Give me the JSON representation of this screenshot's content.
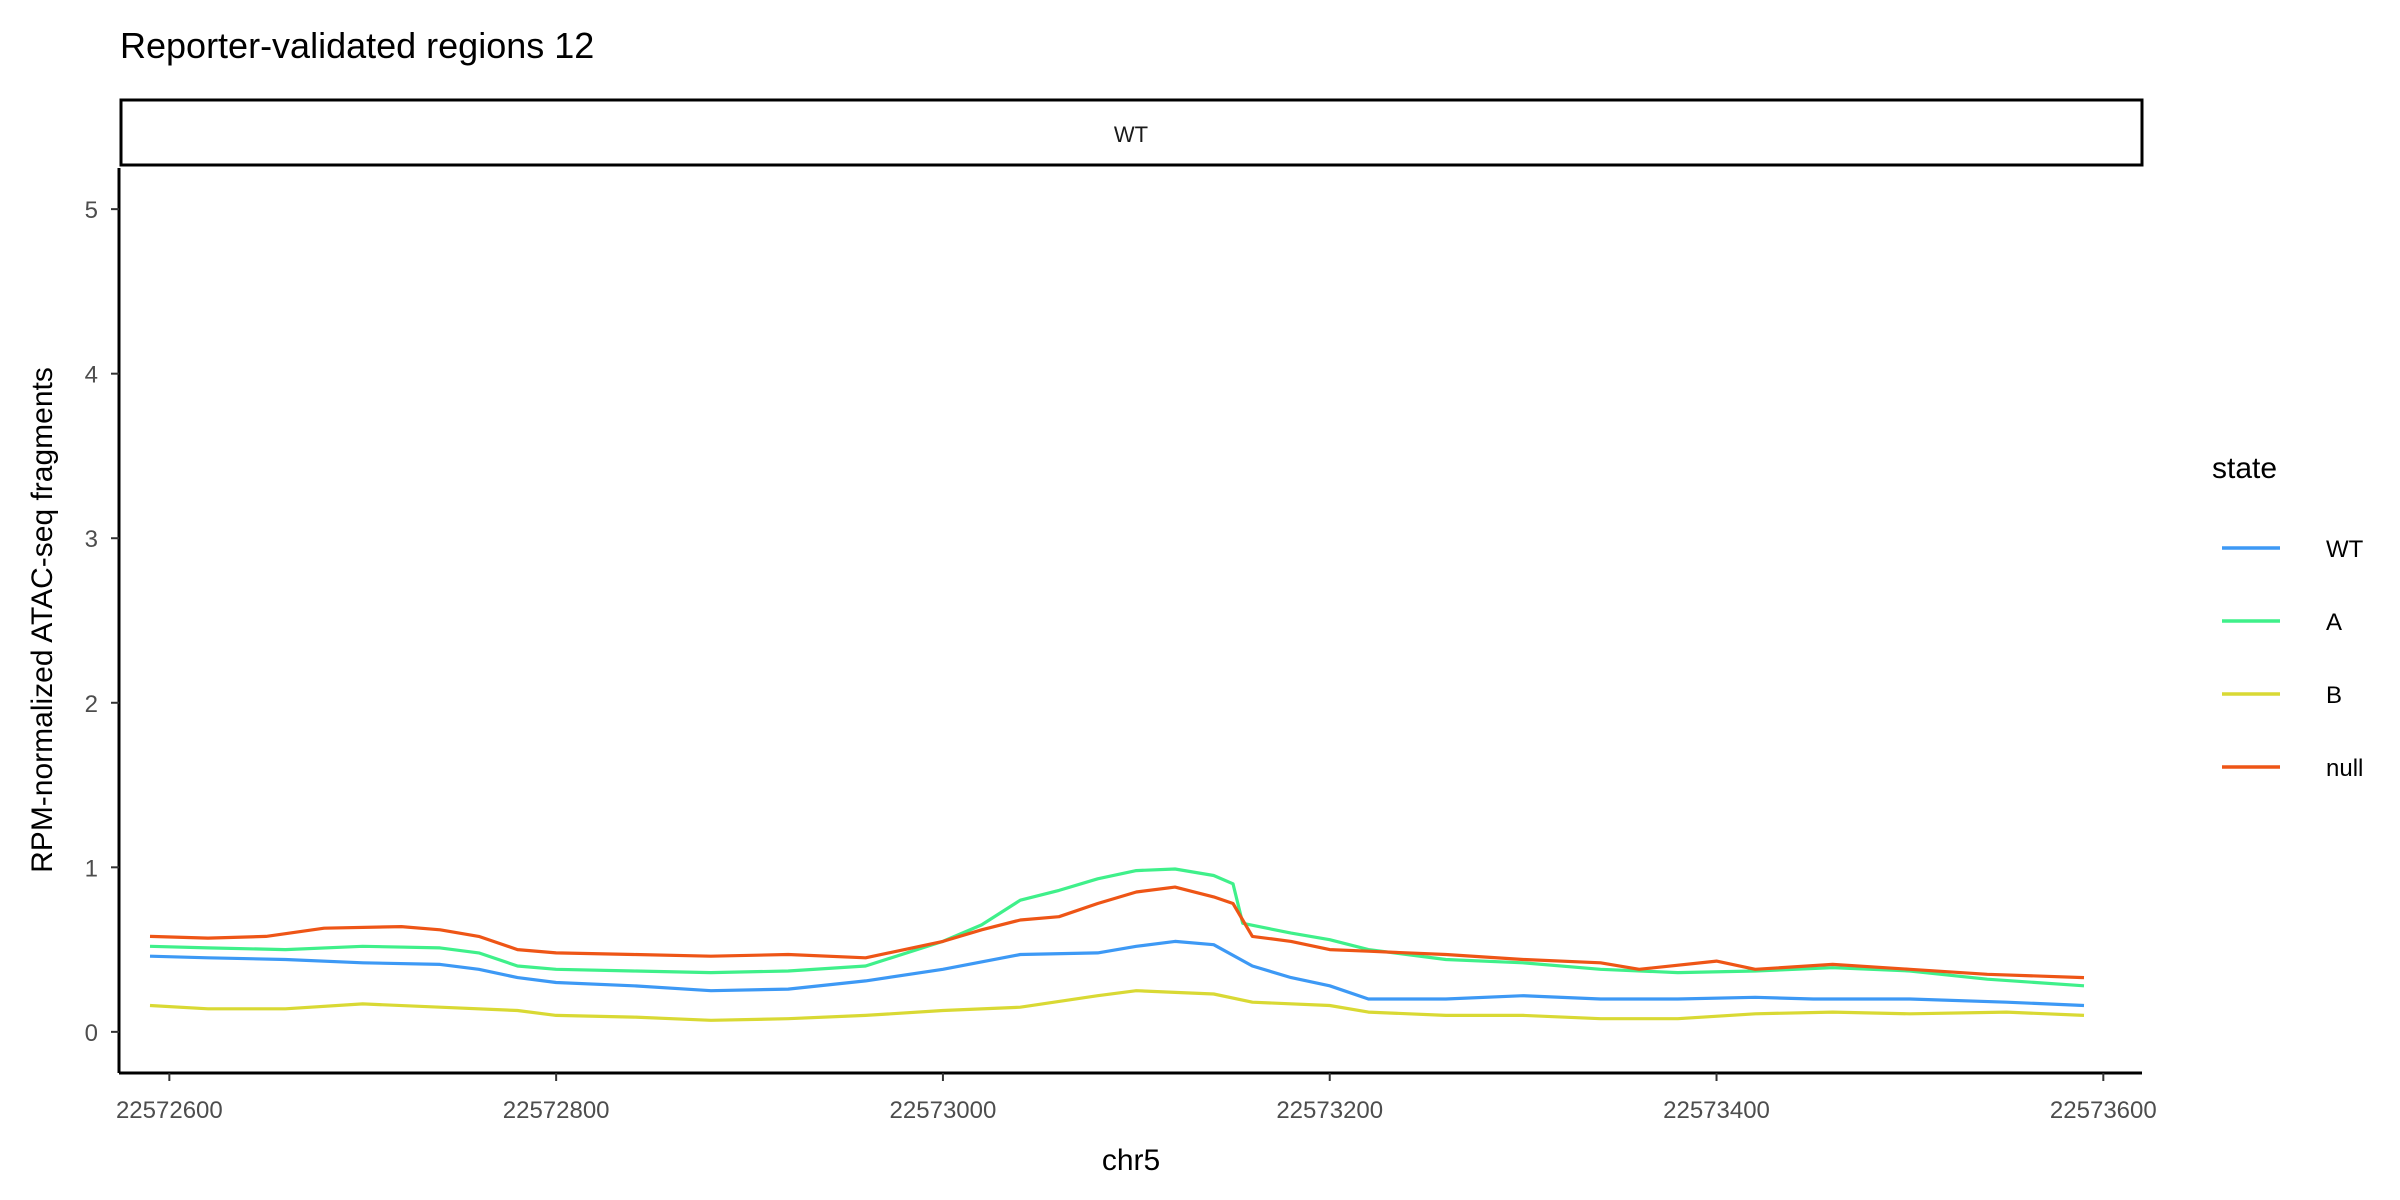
{
  "chart_data": {
    "type": "line",
    "title": "Reporter-validated regions 12",
    "facet": "WT",
    "xlabel": "chr5",
    "ylabel": "RPM-normalized ATAC-seq fragments",
    "xlim": [
      22572575,
      22573620
    ],
    "ylim": [
      -0.25,
      5.25
    ],
    "x_ticks": [
      22572600,
      22572800,
      22573000,
      22573200,
      22573400,
      22573600
    ],
    "y_ticks": [
      0,
      1,
      2,
      3,
      4,
      5
    ],
    "grid": false,
    "legend": {
      "title": "state",
      "position": "right"
    },
    "series": [
      {
        "name": "WT",
        "color": "#3d99f5",
        "points": [
          [
            22572590,
            0.46
          ],
          [
            22572620,
            0.45
          ],
          [
            22572660,
            0.44
          ],
          [
            22572700,
            0.42
          ],
          [
            22572740,
            0.41
          ],
          [
            22572760,
            0.38
          ],
          [
            22572780,
            0.33
          ],
          [
            22572800,
            0.3
          ],
          [
            22572840,
            0.28
          ],
          [
            22572880,
            0.25
          ],
          [
            22572920,
            0.26
          ],
          [
            22572960,
            0.31
          ],
          [
            22573000,
            0.38
          ],
          [
            22573040,
            0.47
          ],
          [
            22573080,
            0.48
          ],
          [
            22573100,
            0.52
          ],
          [
            22573120,
            0.55
          ],
          [
            22573140,
            0.53
          ],
          [
            22573160,
            0.4
          ],
          [
            22573180,
            0.33
          ],
          [
            22573200,
            0.28
          ],
          [
            22573220,
            0.2
          ],
          [
            22573260,
            0.2
          ],
          [
            22573300,
            0.22
          ],
          [
            22573340,
            0.2
          ],
          [
            22573380,
            0.2
          ],
          [
            22573420,
            0.21
          ],
          [
            22573450,
            0.2
          ],
          [
            22573500,
            0.2
          ],
          [
            22573550,
            0.18
          ],
          [
            22573590,
            0.16
          ]
        ]
      },
      {
        "name": "A",
        "color": "#3ff08a",
        "points": [
          [
            22572590,
            0.52
          ],
          [
            22572620,
            0.51
          ],
          [
            22572660,
            0.5
          ],
          [
            22572700,
            0.52
          ],
          [
            22572740,
            0.51
          ],
          [
            22572760,
            0.48
          ],
          [
            22572780,
            0.4
          ],
          [
            22572800,
            0.38
          ],
          [
            22572840,
            0.37
          ],
          [
            22572880,
            0.36
          ],
          [
            22572920,
            0.37
          ],
          [
            22572960,
            0.4
          ],
          [
            22573000,
            0.55
          ],
          [
            22573020,
            0.65
          ],
          [
            22573040,
            0.8
          ],
          [
            22573060,
            0.86
          ],
          [
            22573080,
            0.93
          ],
          [
            22573100,
            0.98
          ],
          [
            22573120,
            0.99
          ],
          [
            22573140,
            0.95
          ],
          [
            22573150,
            0.9
          ],
          [
            22573155,
            0.66
          ],
          [
            22573180,
            0.6
          ],
          [
            22573200,
            0.56
          ],
          [
            22573220,
            0.5
          ],
          [
            22573260,
            0.44
          ],
          [
            22573300,
            0.42
          ],
          [
            22573340,
            0.38
          ],
          [
            22573380,
            0.36
          ],
          [
            22573420,
            0.37
          ],
          [
            22573460,
            0.39
          ],
          [
            22573500,
            0.37
          ],
          [
            22573540,
            0.32
          ],
          [
            22573590,
            0.28
          ]
        ]
      },
      {
        "name": "B",
        "color": "#d9d934",
        "points": [
          [
            22572590,
            0.16
          ],
          [
            22572620,
            0.14
          ],
          [
            22572660,
            0.14
          ],
          [
            22572700,
            0.17
          ],
          [
            22572740,
            0.15
          ],
          [
            22572780,
            0.13
          ],
          [
            22572800,
            0.1
          ],
          [
            22572840,
            0.09
          ],
          [
            22572880,
            0.07
          ],
          [
            22572920,
            0.08
          ],
          [
            22572960,
            0.1
          ],
          [
            22573000,
            0.13
          ],
          [
            22573040,
            0.15
          ],
          [
            22573080,
            0.22
          ],
          [
            22573100,
            0.25
          ],
          [
            22573120,
            0.24
          ],
          [
            22573140,
            0.23
          ],
          [
            22573160,
            0.18
          ],
          [
            22573200,
            0.16
          ],
          [
            22573220,
            0.12
          ],
          [
            22573260,
            0.1
          ],
          [
            22573300,
            0.1
          ],
          [
            22573340,
            0.08
          ],
          [
            22573380,
            0.08
          ],
          [
            22573420,
            0.11
          ],
          [
            22573460,
            0.12
          ],
          [
            22573500,
            0.11
          ],
          [
            22573550,
            0.12
          ],
          [
            22573590,
            0.1
          ]
        ]
      },
      {
        "name": "null",
        "color": "#ee5516",
        "points": [
          [
            22572590,
            0.58
          ],
          [
            22572620,
            0.57
          ],
          [
            22572650,
            0.58
          ],
          [
            22572680,
            0.63
          ],
          [
            22572720,
            0.64
          ],
          [
            22572740,
            0.62
          ],
          [
            22572760,
            0.58
          ],
          [
            22572780,
            0.5
          ],
          [
            22572800,
            0.48
          ],
          [
            22572840,
            0.47
          ],
          [
            22572880,
            0.46
          ],
          [
            22572920,
            0.47
          ],
          [
            22572960,
            0.45
          ],
          [
            22573000,
            0.55
          ],
          [
            22573020,
            0.62
          ],
          [
            22573040,
            0.68
          ],
          [
            22573060,
            0.7
          ],
          [
            22573080,
            0.78
          ],
          [
            22573100,
            0.85
          ],
          [
            22573120,
            0.88
          ],
          [
            22573140,
            0.82
          ],
          [
            22573150,
            0.78
          ],
          [
            22573160,
            0.58
          ],
          [
            22573180,
            0.55
          ],
          [
            22573200,
            0.5
          ],
          [
            22573220,
            0.49
          ],
          [
            22573260,
            0.47
          ],
          [
            22573300,
            0.44
          ],
          [
            22573340,
            0.42
          ],
          [
            22573360,
            0.38
          ],
          [
            22573400,
            0.43
          ],
          [
            22573420,
            0.38
          ],
          [
            22573460,
            0.41
          ],
          [
            22573500,
            0.38
          ],
          [
            22573540,
            0.35
          ],
          [
            22573590,
            0.33
          ]
        ]
      }
    ]
  }
}
